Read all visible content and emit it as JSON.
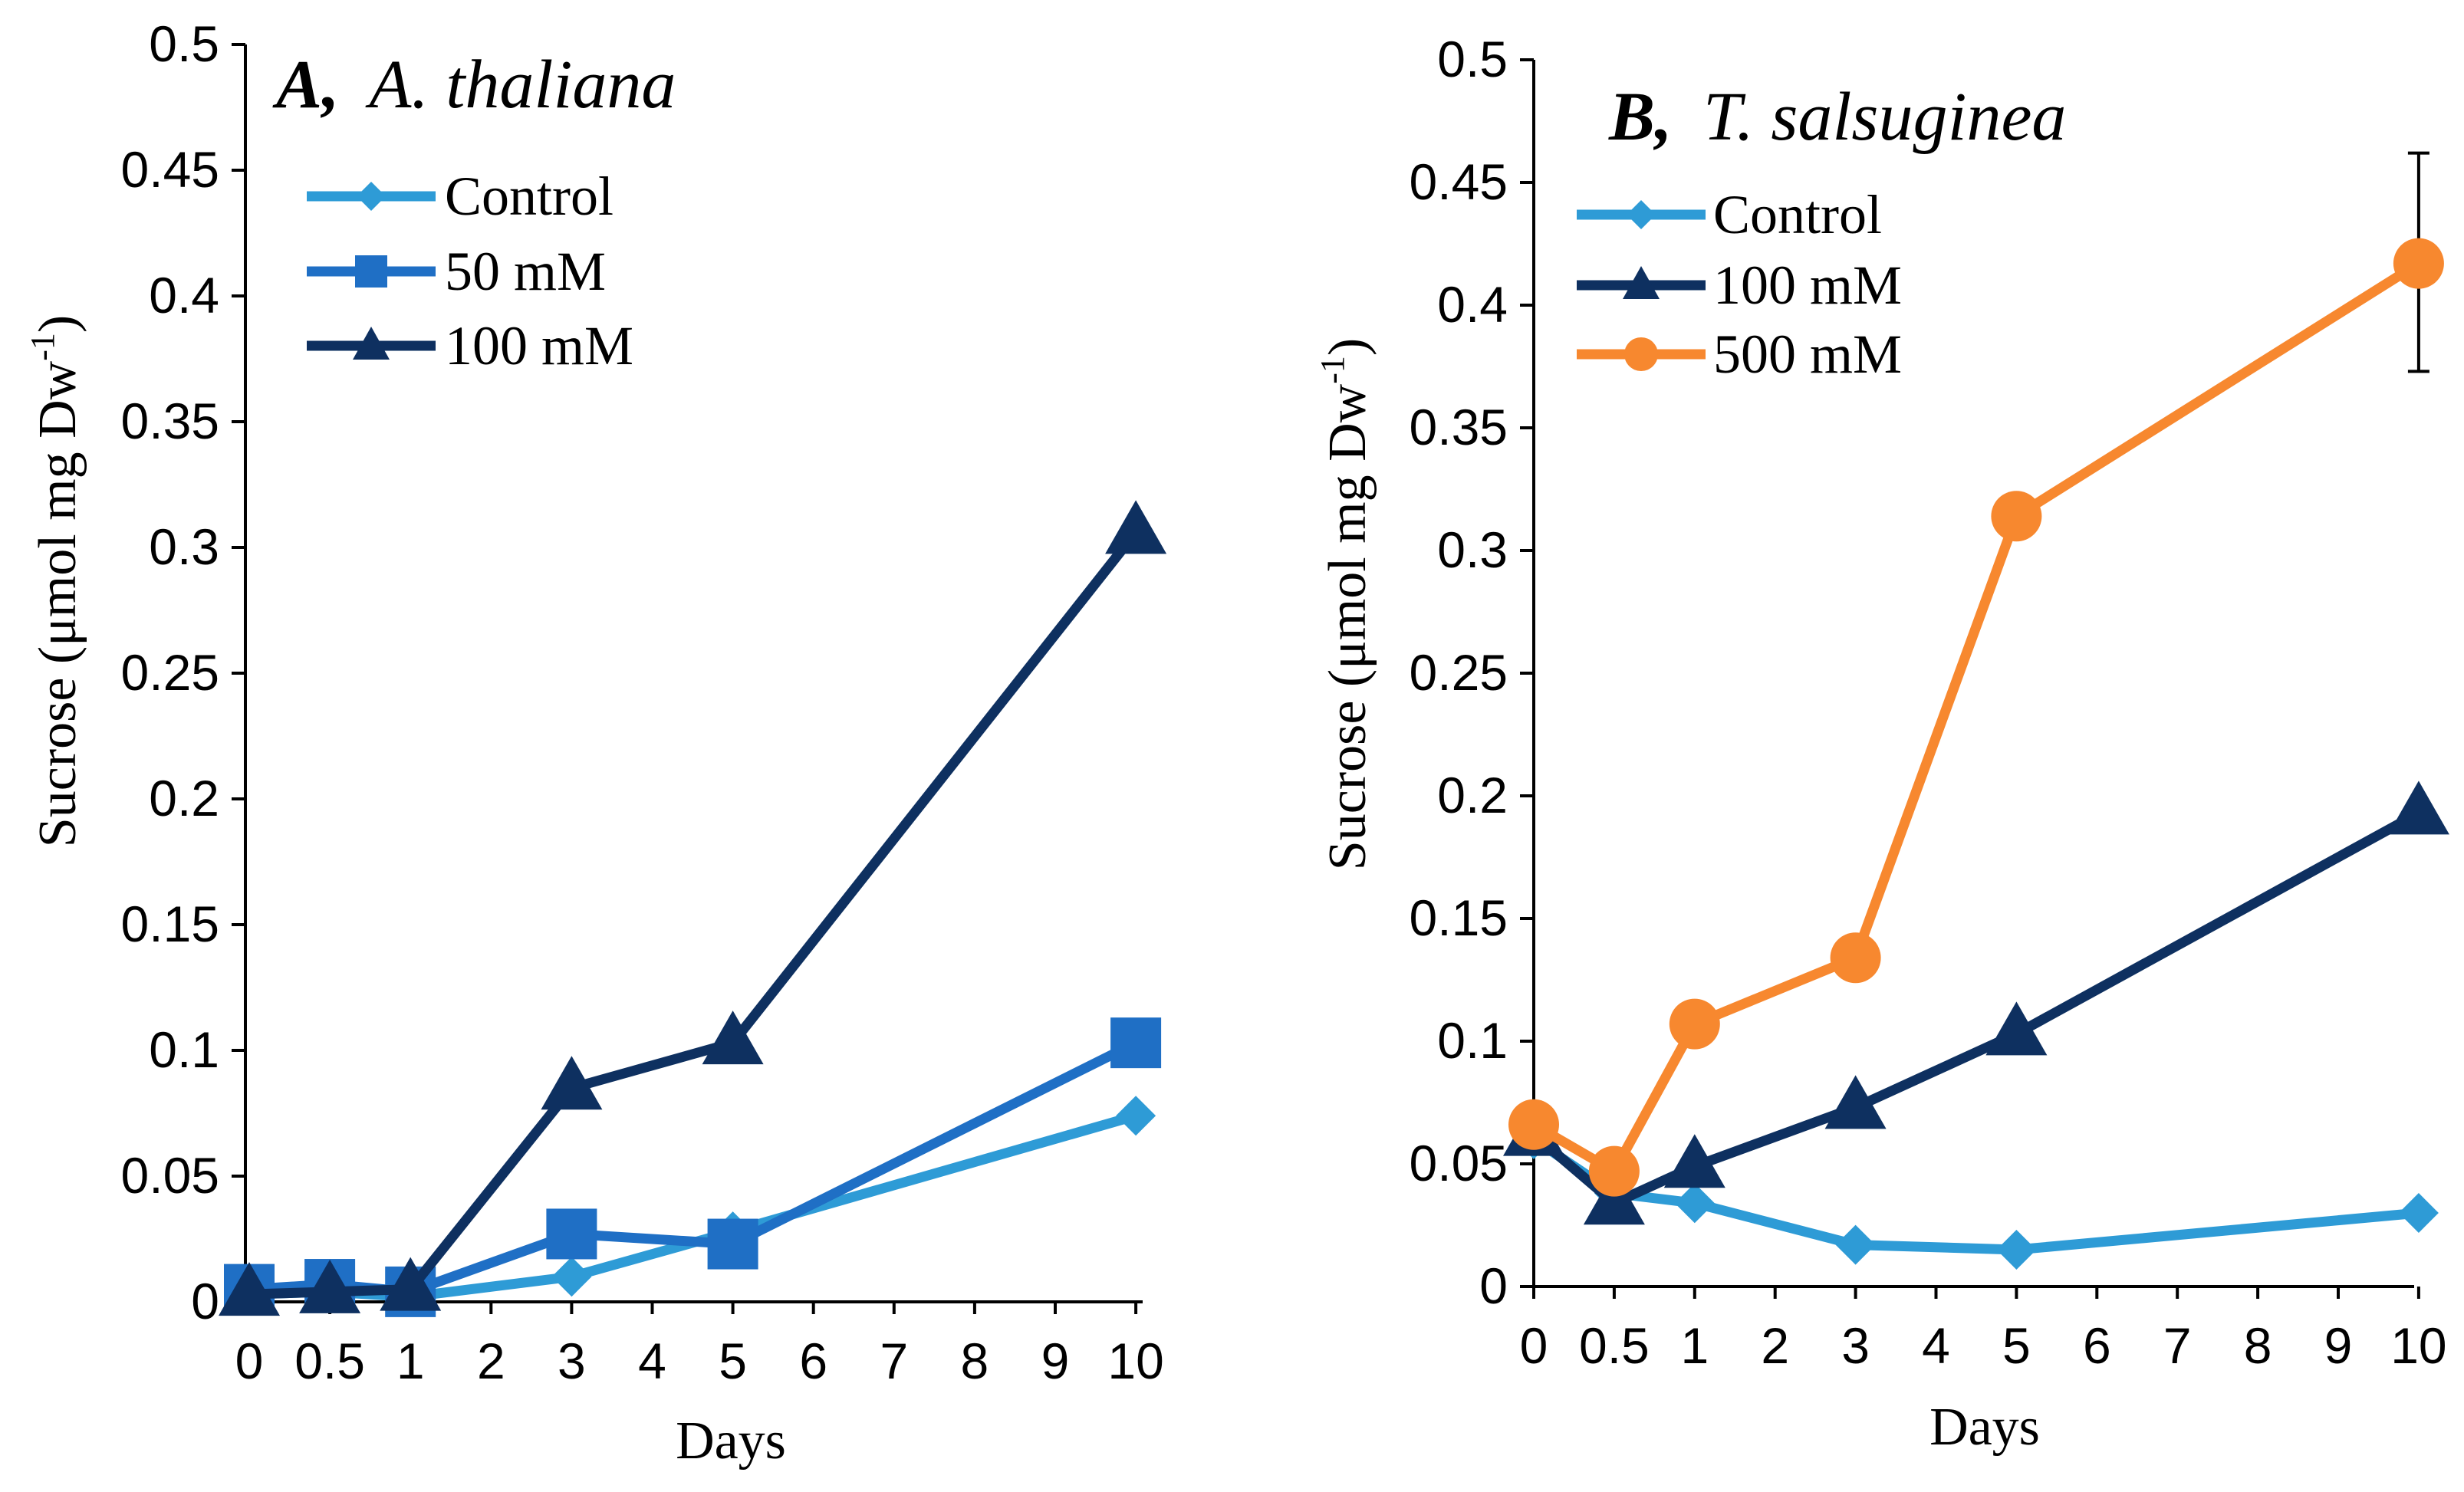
{
  "chart_data": [
    {
      "type": "line",
      "title": "A, A. thaliana",
      "title_prefix": "A,",
      "title_species": "A. thaliana",
      "xlabel": "Days",
      "ylabel": "Sucrose (μmol mg Dw",
      "ylabel_superscript": "-1",
      "ylabel_close": ")",
      "categories": [
        "0",
        "0.5",
        "1",
        "2",
        "3",
        "4",
        "5",
        "6",
        "7",
        "8",
        "9",
        "10"
      ],
      "ylim": [
        0,
        0.5
      ],
      "yticks": [
        "0",
        "0.05",
        "0.1",
        "0.15",
        "0.2",
        "0.25",
        "0.3",
        "0.35",
        "0.4",
        "0.45",
        "0.5"
      ],
      "legend_position": "top-left",
      "series": [
        {
          "name": "Control",
          "color": "#2E9BD6",
          "marker": "diamond",
          "x": [
            0,
            0.5,
            1,
            3,
            5,
            10
          ],
          "values": [
            0.003,
            0.004,
            0.002,
            0.01,
            0.028,
            0.074
          ]
        },
        {
          "name": "50 mM",
          "color": "#1F6FC5",
          "marker": "square",
          "x": [
            0,
            0.5,
            1,
            3,
            5,
            10
          ],
          "values": [
            0.005,
            0.007,
            0.004,
            0.027,
            0.023,
            0.103
          ]
        },
        {
          "name": "100 mM",
          "color": "#0E3060",
          "marker": "triangle",
          "x": [
            0,
            0.5,
            1,
            3,
            5,
            10
          ],
          "values": [
            0.003,
            0.004,
            0.005,
            0.085,
            0.103,
            0.306
          ]
        }
      ]
    },
    {
      "type": "line",
      "title": "B, T. salsuginea",
      "title_prefix": "B,",
      "title_species": "T. salsuginea",
      "xlabel": "Days",
      "ylabel": "Sucrose (μmol mg Dw",
      "ylabel_superscript": "-1",
      "ylabel_close": ")",
      "categories": [
        "0",
        "0.5",
        "1",
        "2",
        "3",
        "4",
        "5",
        "6",
        "7",
        "8",
        "9",
        "10"
      ],
      "ylim": [
        0,
        0.5
      ],
      "yticks": [
        "0",
        "0.05",
        "0.1",
        "0.15",
        "0.2",
        "0.25",
        "0.3",
        "0.35",
        "0.4",
        "0.45",
        "0.5"
      ],
      "legend_position": "top-left",
      "series": [
        {
          "name": "Control",
          "color": "#2E9BD6",
          "marker": "diamond",
          "x": [
            0,
            0.5,
            1,
            3,
            5,
            10
          ],
          "values": [
            0.06,
            0.038,
            0.034,
            0.017,
            0.015,
            0.03
          ]
        },
        {
          "name": "100 mM",
          "color": "#0E3060",
          "marker": "triangle",
          "x": [
            0,
            0.5,
            1,
            3,
            5,
            10
          ],
          "values": [
            0.062,
            0.034,
            0.049,
            0.073,
            0.103,
            0.193
          ]
        },
        {
          "name": "500 mM",
          "color": "#F7882F",
          "marker": "circle",
          "x": [
            0,
            0.5,
            1,
            3,
            5,
            10
          ],
          "values": [
            0.066,
            0.047,
            0.107,
            0.134,
            0.314,
            0.417
          ],
          "error_bars": [
            {
              "x": 10,
              "low": 0.373,
              "high": 0.462
            }
          ]
        }
      ]
    }
  ]
}
